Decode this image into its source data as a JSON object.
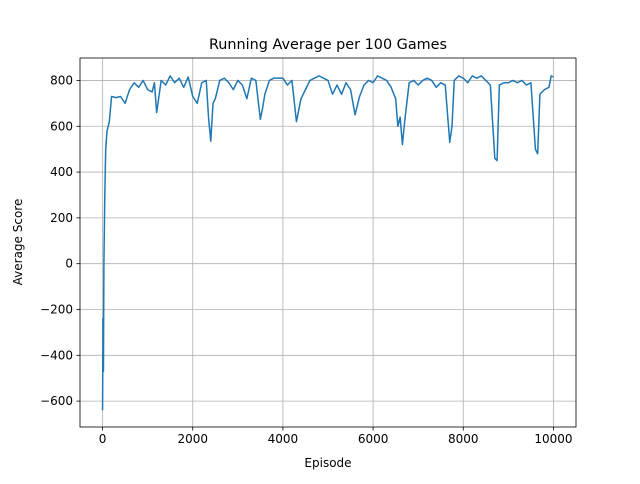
{
  "chart_data": {
    "type": "line",
    "title": "Running Average per 100 Games",
    "xlabel": "Episode",
    "ylabel": "Average Score",
    "x": [
      0,
      10,
      20,
      30,
      50,
      70,
      100,
      150,
      200,
      300,
      400,
      500,
      600,
      700,
      800,
      900,
      1000,
      1100,
      1150,
      1200,
      1300,
      1400,
      1500,
      1600,
      1700,
      1800,
      1900,
      2000,
      2100,
      2200,
      2300,
      2350,
      2400,
      2450,
      2500,
      2600,
      2700,
      2800,
      2900,
      3000,
      3100,
      3200,
      3300,
      3400,
      3500,
      3550,
      3600,
      3700,
      3800,
      3900,
      4000,
      4100,
      4200,
      4300,
      4400,
      4500,
      4600,
      4700,
      4800,
      4900,
      5000,
      5100,
      5200,
      5300,
      5400,
      5500,
      5600,
      5700,
      5800,
      5900,
      6000,
      6100,
      6200,
      6300,
      6400,
      6500,
      6550,
      6600,
      6650,
      6700,
      6800,
      6900,
      7000,
      7100,
      7200,
      7300,
      7400,
      7500,
      7600,
      7700,
      7750,
      7800,
      7900,
      8000,
      8100,
      8200,
      8300,
      8400,
      8500,
      8600,
      8700,
      8750,
      8800,
      8900,
      9000,
      9100,
      9200,
      9300,
      9400,
      9500,
      9600,
      9650,
      9700,
      9800,
      9900,
      9950,
      10000
    ],
    "values": [
      -640,
      -240,
      -470,
      0,
      300,
      500,
      580,
      620,
      730,
      725,
      730,
      700,
      760,
      790,
      770,
      800,
      760,
      750,
      790,
      660,
      800,
      780,
      820,
      790,
      810,
      770,
      815,
      730,
      700,
      790,
      800,
      640,
      535,
      700,
      720,
      800,
      810,
      790,
      760,
      800,
      780,
      720,
      810,
      800,
      630,
      680,
      740,
      800,
      810,
      810,
      810,
      780,
      800,
      620,
      720,
      760,
      800,
      810,
      820,
      810,
      800,
      740,
      780,
      740,
      790,
      760,
      650,
      730,
      780,
      800,
      790,
      820,
      810,
      800,
      770,
      720,
      600,
      640,
      520,
      620,
      790,
      800,
      780,
      800,
      810,
      800,
      770,
      790,
      780,
      530,
      600,
      800,
      820,
      810,
      790,
      820,
      810,
      820,
      800,
      780,
      460,
      450,
      780,
      790,
      790,
      800,
      790,
      800,
      780,
      790,
      500,
      480,
      740,
      760,
      770,
      820,
      815
    ],
    "color": "#1f77b4",
    "xlim": [
      -500,
      10500
    ],
    "ylim": [
      -713,
      898
    ],
    "xticks": [
      0,
      2000,
      4000,
      6000,
      8000,
      10000
    ],
    "yticks": [
      {
        "value": -600,
        "label": "−600"
      },
      {
        "value": -400,
        "label": "−400"
      },
      {
        "value": -200,
        "label": "−200"
      },
      0,
      200,
      400,
      600,
      800
    ],
    "grid": true
  }
}
